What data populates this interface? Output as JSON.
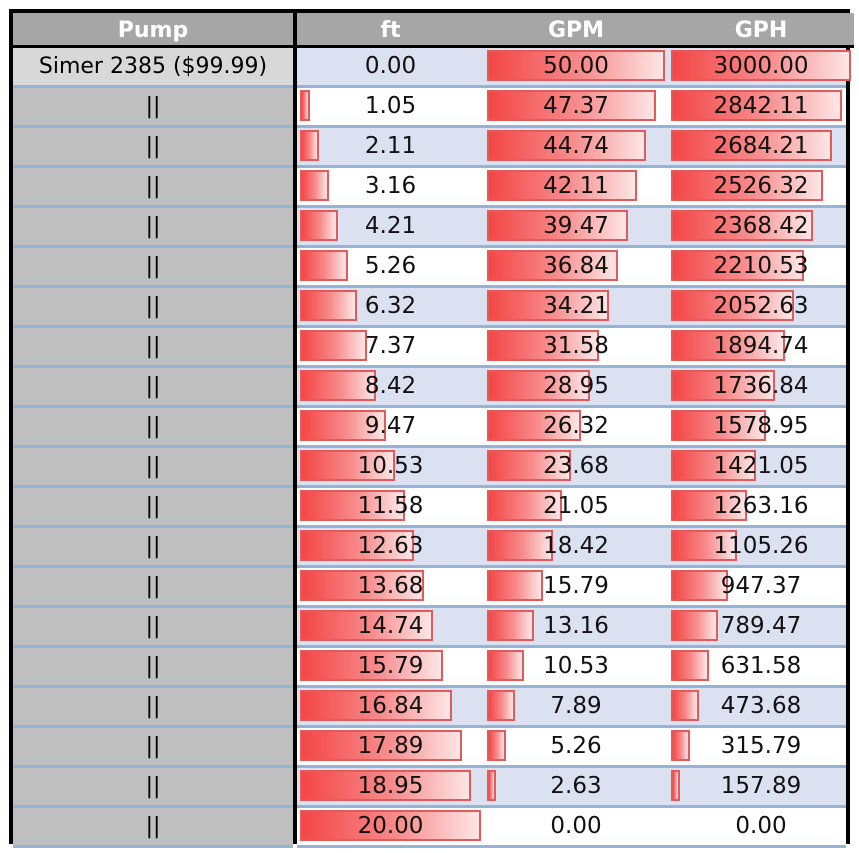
{
  "table": {
    "headers": {
      "pump": "Pump",
      "ft": "ft",
      "gpm": "GPM",
      "gph": "GPH"
    },
    "pump_name": "Simer 2385 ($99.99)",
    "repeat_mark": "||",
    "max": {
      "ft": 20.0,
      "gpm": 50.0,
      "gph": 3000.0
    },
    "rows": [
      {
        "ft": "0.00",
        "gpm": "50.00",
        "gph": "3000.00"
      },
      {
        "ft": "1.05",
        "gpm": "47.37",
        "gph": "2842.11"
      },
      {
        "ft": "2.11",
        "gpm": "44.74",
        "gph": "2684.21"
      },
      {
        "ft": "3.16",
        "gpm": "42.11",
        "gph": "2526.32"
      },
      {
        "ft": "4.21",
        "gpm": "39.47",
        "gph": "2368.42"
      },
      {
        "ft": "5.26",
        "gpm": "36.84",
        "gph": "2210.53"
      },
      {
        "ft": "6.32",
        "gpm": "34.21",
        "gph": "2052.63"
      },
      {
        "ft": "7.37",
        "gpm": "31.58",
        "gph": "1894.74"
      },
      {
        "ft": "8.42",
        "gpm": "28.95",
        "gph": "1736.84"
      },
      {
        "ft": "9.47",
        "gpm": "26.32",
        "gph": "1578.95"
      },
      {
        "ft": "10.53",
        "gpm": "23.68",
        "gph": "1421.05"
      },
      {
        "ft": "11.58",
        "gpm": "21.05",
        "gph": "1263.16"
      },
      {
        "ft": "12.63",
        "gpm": "18.42",
        "gph": "1105.26"
      },
      {
        "ft": "13.68",
        "gpm": "15.79",
        "gph": "947.37"
      },
      {
        "ft": "14.74",
        "gpm": "13.16",
        "gph": "789.47"
      },
      {
        "ft": "15.79",
        "gpm": "10.53",
        "gph": "631.58"
      },
      {
        "ft": "16.84",
        "gpm": "7.89",
        "gph": "473.68"
      },
      {
        "ft": "17.89",
        "gpm": "5.26",
        "gph": "315.79"
      },
      {
        "ft": "18.95",
        "gpm": "2.63",
        "gph": "157.89"
      },
      {
        "ft": "20.00",
        "gpm": "0.00",
        "gph": "0.00"
      }
    ]
  },
  "colors": {
    "header_bg": "#a6a6a6",
    "pump_bg": "#bfbfbf",
    "band_bg": "#dbe1f1",
    "row_border": "#95b3d7",
    "bar_red": "#f34646",
    "bar_border": "#e35a5a"
  }
}
